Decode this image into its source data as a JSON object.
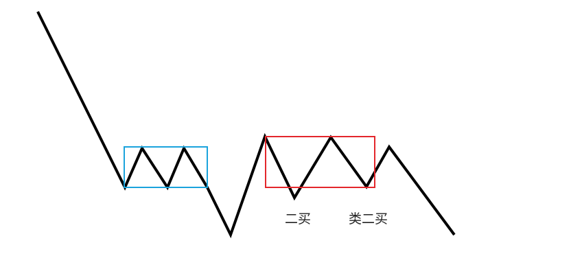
{
  "colors": {
    "background": "#ffffff",
    "price_line": "#000000",
    "first_pivot_box": "#1aa3dc",
    "second_pivot_box": "#e3262b",
    "label_text": "#222222"
  },
  "annotations": {
    "second_buy": "二买",
    "second_buy_like": "类二买"
  }
}
